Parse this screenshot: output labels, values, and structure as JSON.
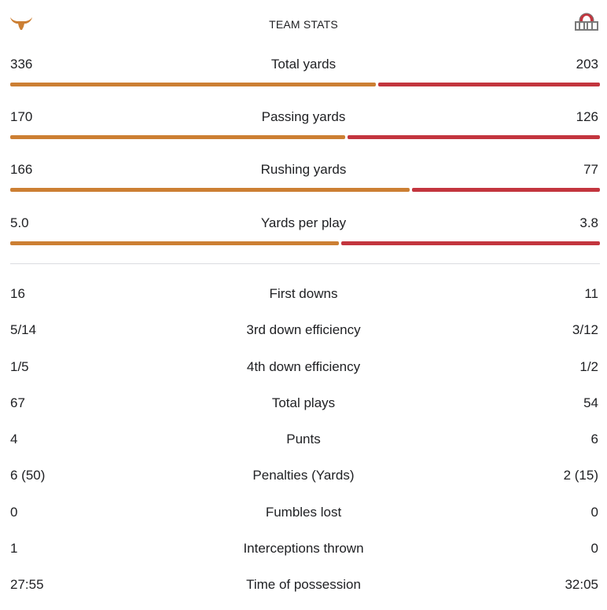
{
  "header": {
    "title": "TEAM STATS",
    "left_logo": "longhorn-icon",
    "right_logo": "ohio-state-logo-icon"
  },
  "colors": {
    "left_team": "#cc7f33",
    "right_team": "#c3353e",
    "divider": "#dadce0"
  },
  "bar_stats": [
    {
      "label": "Total yards",
      "left": "336",
      "right": "203",
      "left_share": 0.623
    },
    {
      "label": "Passing yards",
      "left": "170",
      "right": "126",
      "left_share": 0.57
    },
    {
      "label": "Rushing yards",
      "left": "166",
      "right": "77",
      "left_share": 0.68
    },
    {
      "label": "Yards per play",
      "left": "5.0",
      "right": "3.8",
      "left_share": 0.56
    }
  ],
  "stats": [
    {
      "label": "First downs",
      "left": "16",
      "right": "11"
    },
    {
      "label": "3rd down efficiency",
      "left": "5/14",
      "right": "3/12"
    },
    {
      "label": "4th down efficiency",
      "left": "1/5",
      "right": "1/2"
    },
    {
      "label": "Total plays",
      "left": "67",
      "right": "54"
    },
    {
      "label": "Punts",
      "left": "4",
      "right": "6"
    },
    {
      "label": "Penalties (Yards)",
      "left": "6 (50)",
      "right": "2 (15)"
    },
    {
      "label": "Fumbles lost",
      "left": "0",
      "right": "0"
    },
    {
      "label": "Interceptions thrown",
      "left": "1",
      "right": "0"
    },
    {
      "label": "Time of possession",
      "left": "27:55",
      "right": "32:05"
    }
  ]
}
